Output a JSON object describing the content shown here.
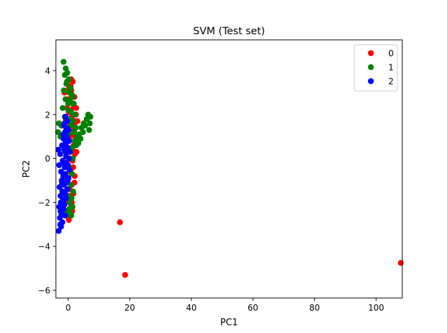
{
  "chart_data": {
    "type": "scatter",
    "title": "SVM (Test set)",
    "xlabel": "PC1",
    "ylabel": "PC2",
    "xlim": [
      -4,
      108.5
    ],
    "ylim": [
      -6.35,
      5.4
    ],
    "xticks": [
      0,
      20,
      40,
      60,
      80,
      100
    ],
    "yticks": [
      -6,
      -4,
      -2,
      0,
      2,
      4
    ],
    "grid": false,
    "legend_position": "top-right",
    "series": [
      {
        "name": "0",
        "color": "#ff0000",
        "points": [
          [
            16.8,
            -2.9
          ],
          [
            18.5,
            -5.3
          ],
          [
            108.0,
            -4.75
          ],
          [
            1.0,
            3.6
          ],
          [
            1.5,
            3.5
          ],
          [
            0.3,
            3.2
          ],
          [
            -1.2,
            3.0
          ],
          [
            2.0,
            2.8
          ],
          [
            0.5,
            2.6
          ],
          [
            -0.4,
            2.3
          ],
          [
            1.8,
            2.4
          ],
          [
            2.6,
            2.3
          ],
          [
            0.2,
            2.1
          ],
          [
            1.2,
            1.9
          ],
          [
            -0.8,
            1.8
          ],
          [
            2.0,
            1.6
          ],
          [
            0.7,
            1.5
          ],
          [
            -0.2,
            1.3
          ],
          [
            1.5,
            1.1
          ],
          [
            2.4,
            0.9
          ],
          [
            0.1,
            0.8
          ],
          [
            -1.0,
            0.6
          ],
          [
            1.3,
            0.4
          ],
          [
            2.2,
            0.2
          ],
          [
            0.5,
            0.0
          ],
          [
            -0.6,
            -0.2
          ],
          [
            1.6,
            -0.4
          ],
          [
            0.8,
            -0.6
          ],
          [
            2.1,
            -0.8
          ],
          [
            -0.3,
            -1.0
          ],
          [
            1.1,
            -1.2
          ],
          [
            0.4,
            -1.4
          ],
          [
            1.7,
            -1.6
          ],
          [
            -0.1,
            -1.9
          ],
          [
            0.9,
            -2.1
          ],
          [
            1.3,
            -2.4
          ],
          [
            -0.5,
            -2.6
          ],
          [
            0.2,
            -2.8
          ],
          [
            1.0,
            3.1
          ],
          [
            2.5,
            2.0
          ],
          [
            1.9,
            1.3
          ],
          [
            0.0,
            2.7
          ],
          [
            0.6,
            1.0
          ],
          [
            1.4,
            -0.1
          ],
          [
            2.0,
            -1.1
          ],
          [
            0.3,
            -1.7
          ],
          [
            1.8,
            0.6
          ],
          [
            -0.9,
            1.1
          ],
          [
            2.3,
            1.7
          ],
          [
            0.8,
            3.3
          ],
          [
            3.0,
            1.7
          ],
          [
            2.7,
            0.3
          ],
          [
            1.2,
            -2.0
          ],
          [
            -0.7,
            -0.8
          ],
          [
            0.9,
            2.2
          ]
        ]
      },
      {
        "name": "1",
        "color": "#008000",
        "points": [
          [
            -1.5,
            4.4
          ],
          [
            -0.8,
            4.1
          ],
          [
            -0.3,
            3.9
          ],
          [
            -1.1,
            3.8
          ],
          [
            0.2,
            3.6
          ],
          [
            -0.6,
            3.4
          ],
          [
            0.8,
            3.2
          ],
          [
            -1.4,
            3.1
          ],
          [
            0.3,
            3.0
          ],
          [
            1.2,
            2.9
          ],
          [
            -0.9,
            2.7
          ],
          [
            0.6,
            2.6
          ],
          [
            1.8,
            2.5
          ],
          [
            -1.8,
            2.3
          ],
          [
            0.1,
            2.2
          ],
          [
            1.0,
            2.1
          ],
          [
            2.2,
            2.0
          ],
          [
            -1.1,
            1.9
          ],
          [
            0.5,
            1.8
          ],
          [
            1.6,
            1.7
          ],
          [
            -3.0,
            1.6
          ],
          [
            -2.2,
            1.5
          ],
          [
            -3.3,
            1.2
          ],
          [
            -2.5,
            1.0
          ],
          [
            0.9,
            1.5
          ],
          [
            2.5,
            1.4
          ],
          [
            -0.6,
            1.3
          ],
          [
            1.9,
            1.2
          ],
          [
            0.2,
            1.1
          ],
          [
            3.0,
            1.0
          ],
          [
            4.3,
            1.4
          ],
          [
            4.8,
            1.2
          ],
          [
            5.0,
            1.6
          ],
          [
            6.0,
            1.8
          ],
          [
            6.5,
            2.0
          ],
          [
            7.2,
            1.9
          ],
          [
            7.0,
            1.6
          ],
          [
            6.8,
            1.3
          ],
          [
            5.5,
            1.5
          ],
          [
            4.0,
            0.9
          ],
          [
            3.3,
            0.7
          ],
          [
            2.6,
            0.6
          ],
          [
            1.3,
            0.5
          ],
          [
            -0.3,
            0.4
          ],
          [
            0.7,
            0.3
          ],
          [
            1.5,
            0.0
          ],
          [
            -1.0,
            -0.2
          ],
          [
            0.4,
            -0.4
          ],
          [
            1.2,
            -0.7
          ],
          [
            -0.5,
            -0.9
          ],
          [
            0.9,
            -1.2
          ],
          [
            1.6,
            -1.5
          ],
          [
            -0.2,
            -1.7
          ],
          [
            1.1,
            -1.8
          ],
          [
            0.5,
            -2.0
          ],
          [
            1.4,
            -2.2
          ],
          [
            -0.8,
            -2.4
          ],
          [
            0.7,
            -2.5
          ],
          [
            0.3,
            -2.3
          ],
          [
            1.0,
            -2.6
          ],
          [
            -1.3,
            0.9
          ],
          [
            2.1,
            0.8
          ],
          [
            3.6,
            1.1
          ],
          [
            0.0,
            2.5
          ],
          [
            -0.4,
            3.5
          ],
          [
            1.4,
            2.8
          ]
        ]
      },
      {
        "name": "2",
        "color": "#0000ff",
        "points": [
          [
            -0.9,
            1.9
          ],
          [
            -0.3,
            1.7
          ],
          [
            -1.2,
            1.6
          ],
          [
            -0.6,
            1.4
          ],
          [
            0.1,
            1.3
          ],
          [
            -1.0,
            1.2
          ],
          [
            -0.4,
            1.0
          ],
          [
            -1.5,
            0.9
          ],
          [
            0.3,
            0.8
          ],
          [
            -0.8,
            0.7
          ],
          [
            -2.0,
            0.6
          ],
          [
            -0.2,
            0.5
          ],
          [
            -1.3,
            0.4
          ],
          [
            0.5,
            0.3
          ],
          [
            -3.2,
            0.4
          ],
          [
            -2.6,
            0.2
          ],
          [
            -0.7,
            0.1
          ],
          [
            0.2,
            0.0
          ],
          [
            -1.8,
            -0.1
          ],
          [
            -0.5,
            -0.2
          ],
          [
            -2.9,
            -0.3
          ],
          [
            -1.1,
            -0.4
          ],
          [
            0.4,
            -0.5
          ],
          [
            -2.3,
            -0.6
          ],
          [
            -0.9,
            -0.7
          ],
          [
            -1.6,
            -0.8
          ],
          [
            0.1,
            -0.9
          ],
          [
            -2.1,
            -1.0
          ],
          [
            -0.6,
            -1.1
          ],
          [
            -1.4,
            -1.2
          ],
          [
            -2.8,
            -1.3
          ],
          [
            -0.3,
            -1.4
          ],
          [
            -1.9,
            -1.5
          ],
          [
            -1.0,
            -1.6
          ],
          [
            -2.5,
            -1.7
          ],
          [
            -0.7,
            -1.8
          ],
          [
            -1.7,
            -1.9
          ],
          [
            -2.4,
            -2.0
          ],
          [
            -1.2,
            -2.1
          ],
          [
            -2.9,
            -2.2
          ],
          [
            -1.5,
            -2.3
          ],
          [
            -2.2,
            -2.5
          ],
          [
            -1.0,
            -2.6
          ],
          [
            -2.7,
            -2.7
          ],
          [
            -1.9,
            -2.9
          ],
          [
            -2.3,
            -3.1
          ],
          [
            -3.1,
            -3.3
          ],
          [
            -2.6,
            -3.0
          ],
          [
            -0.4,
            0.9
          ],
          [
            -1.4,
            1.5
          ],
          [
            -0.1,
            -0.3
          ],
          [
            -2.0,
            -1.1
          ],
          [
            -1.3,
            -0.2
          ],
          [
            -0.8,
            0.3
          ],
          [
            -2.5,
            -2.4
          ],
          [
            -1.6,
            1.1
          ],
          [
            -0.2,
            -1.0
          ]
        ]
      }
    ]
  }
}
